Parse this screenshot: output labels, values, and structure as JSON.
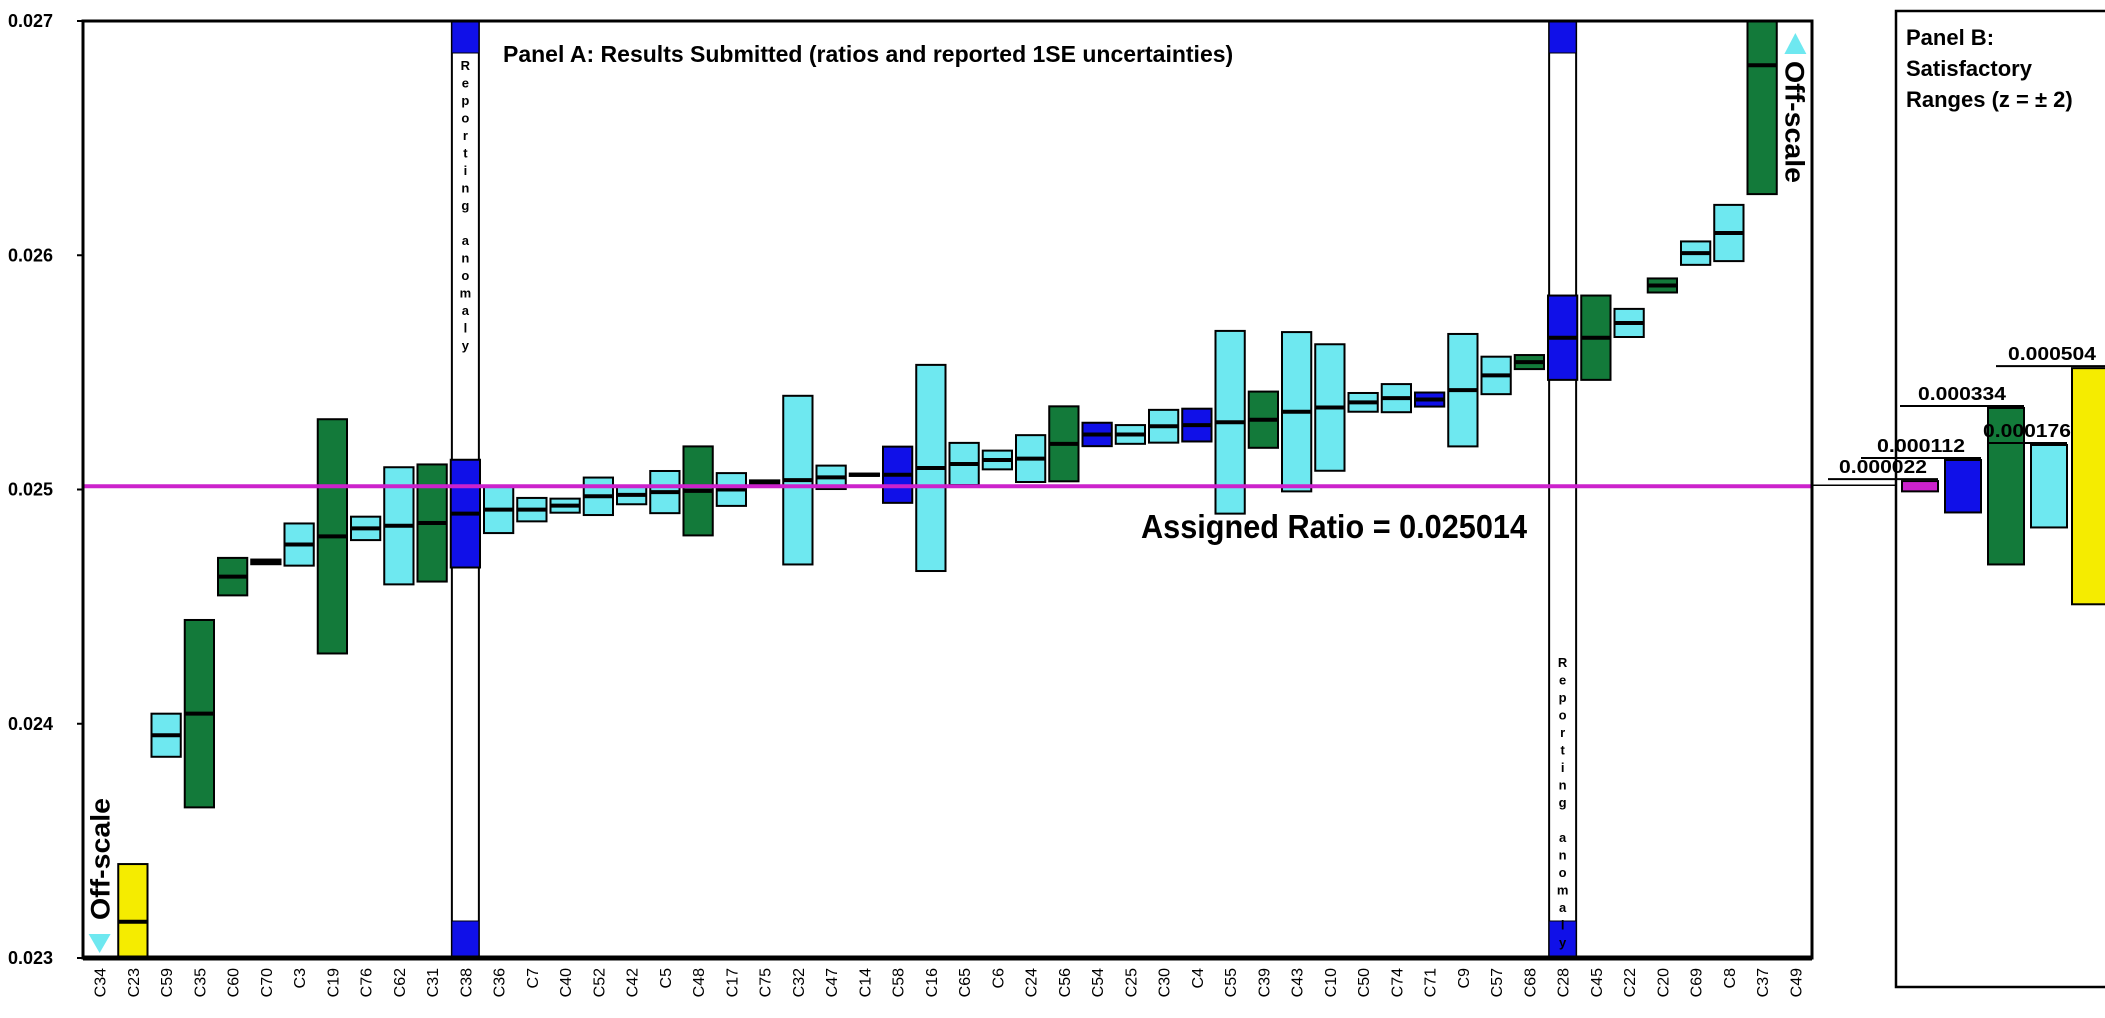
{
  "chart_data": {
    "type": "box",
    "title": "Panel A:  Results Submitted (ratios and reported 1SE uncertainties)",
    "categories": [
      "C34",
      "C23",
      "C59",
      "C35",
      "C60",
      "C70",
      "C3",
      "C19",
      "C76",
      "C62",
      "C31",
      "C38",
      "C36",
      "C7",
      "C40",
      "C52",
      "C42",
      "C5",
      "C48",
      "C17",
      "C75",
      "C32",
      "C47",
      "C14",
      "C58",
      "C16",
      "C65",
      "C6",
      "C24",
      "C56",
      "C54",
      "C25",
      "C30",
      "C4",
      "C55",
      "C39",
      "C43",
      "C10",
      "C50",
      "C74",
      "C71",
      "C9",
      "C57",
      "C68",
      "C28",
      "C45",
      "C22",
      "C20",
      "C69",
      "C8",
      "C37",
      "C49"
    ],
    "values": [
      null,
      0.023155,
      0.023951,
      0.024043,
      0.024628,
      0.024691,
      0.024765,
      0.0248,
      0.024834,
      0.024845,
      0.024857,
      0.024897,
      0.024914,
      0.024914,
      0.024931,
      0.024971,
      0.024977,
      0.024989,
      0.024994,
      0.025,
      0.025029,
      0.02504,
      0.025052,
      0.025063,
      0.025063,
      0.025092,
      0.025109,
      0.025126,
      0.025132,
      0.025195,
      0.025235,
      0.025235,
      0.02527,
      0.025275,
      0.025287,
      0.025298,
      0.025332,
      0.02535,
      0.025372,
      0.02539,
      0.025384,
      0.025424,
      0.025487,
      0.025544,
      0.025648,
      0.025648,
      0.025711,
      0.025871,
      0.026009,
      0.026095,
      0.026811,
      null
    ],
    "errors": [
      null,
      0.000246,
      9.2e-05,
      0.0004,
      8e-05,
      1e-05,
      9e-05,
      0.0005,
      5e-05,
      0.00025,
      0.00025,
      0.00023,
      0.0001,
      5e-05,
      3e-05,
      8e-05,
      4e-05,
      9e-05,
      0.00019,
      7e-05,
      1e-05,
      0.00036,
      5e-05,
      5e-06,
      0.00012,
      0.00044,
      9e-05,
      4e-05,
      0.0001,
      0.00016,
      5e-05,
      4e-05,
      7e-05,
      7e-05,
      0.00039,
      0.00012,
      0.00034,
      0.00027,
      4e-05,
      6e-05,
      3e-05,
      0.00024,
      8e-05,
      3e-05,
      0.00018,
      0.00018,
      6e-05,
      3e-05,
      5e-05,
      0.00012,
      0.00055,
      null
    ],
    "colors": [
      "#6ee8f0",
      "#f5ec00",
      "#6ee8f0",
      "#137a3a",
      "#137a3a",
      "#137a3a",
      "#6ee8f0",
      "#137a3a",
      "#6ee8f0",
      "#6ee8f0",
      "#137a3a",
      "#1010e8",
      "#6ee8f0",
      "#6ee8f0",
      "#6ee8f0",
      "#6ee8f0",
      "#6ee8f0",
      "#6ee8f0",
      "#137a3a",
      "#6ee8f0",
      "#6ee8f0",
      "#6ee8f0",
      "#6ee8f0",
      "#6ee8f0",
      "#1010e8",
      "#6ee8f0",
      "#6ee8f0",
      "#6ee8f0",
      "#6ee8f0",
      "#137a3a",
      "#1010e8",
      "#6ee8f0",
      "#6ee8f0",
      "#1010e8",
      "#6ee8f0",
      "#137a3a",
      "#6ee8f0",
      "#6ee8f0",
      "#6ee8f0",
      "#6ee8f0",
      "#1010e8",
      "#6ee8f0",
      "#6ee8f0",
      "#137a3a",
      "#1010e8",
      "#137a3a",
      "#6ee8f0",
      "#137a3a",
      "#6ee8f0",
      "#6ee8f0",
      "#137a3a",
      "#6ee8f0"
    ],
    "ylim": [
      0.023,
      0.027
    ],
    "yticks": [
      0.023,
      0.024,
      0.025,
      0.026,
      0.027
    ],
    "assigned_value": 0.025014,
    "assigned_color": "#cc22cc",
    "assigned_label": "Assigned Ratio = 0.025014",
    "anomaly_categories": [
      "C38",
      "C28"
    ],
    "anomaly_label": "Reporting anomaly",
    "anomaly_color": "#1010e8",
    "off_scale": [
      {
        "category": "C34",
        "direction": "down",
        "label": "Off-scale"
      },
      {
        "category": "C49",
        "direction": "up",
        "label": "Off-scale"
      }
    ],
    "off_scale_color": "#c8283c",
    "panel_b": {
      "title_lines": [
        "Panel B:",
        "Satisfactory",
        "Ranges (z = ± 2)"
      ],
      "values": [
        2.2e-05,
        0.000112,
        0.000334,
        0.000176,
        0.000504
      ],
      "value_labels": [
        "0.000022",
        "0.000112",
        "0.000334",
        "0.000176",
        "0.000504"
      ],
      "colors": [
        "#cc22cc",
        "#1010e8",
        "#137a3a",
        "#6ee8f0",
        "#f5ec00"
      ]
    }
  }
}
